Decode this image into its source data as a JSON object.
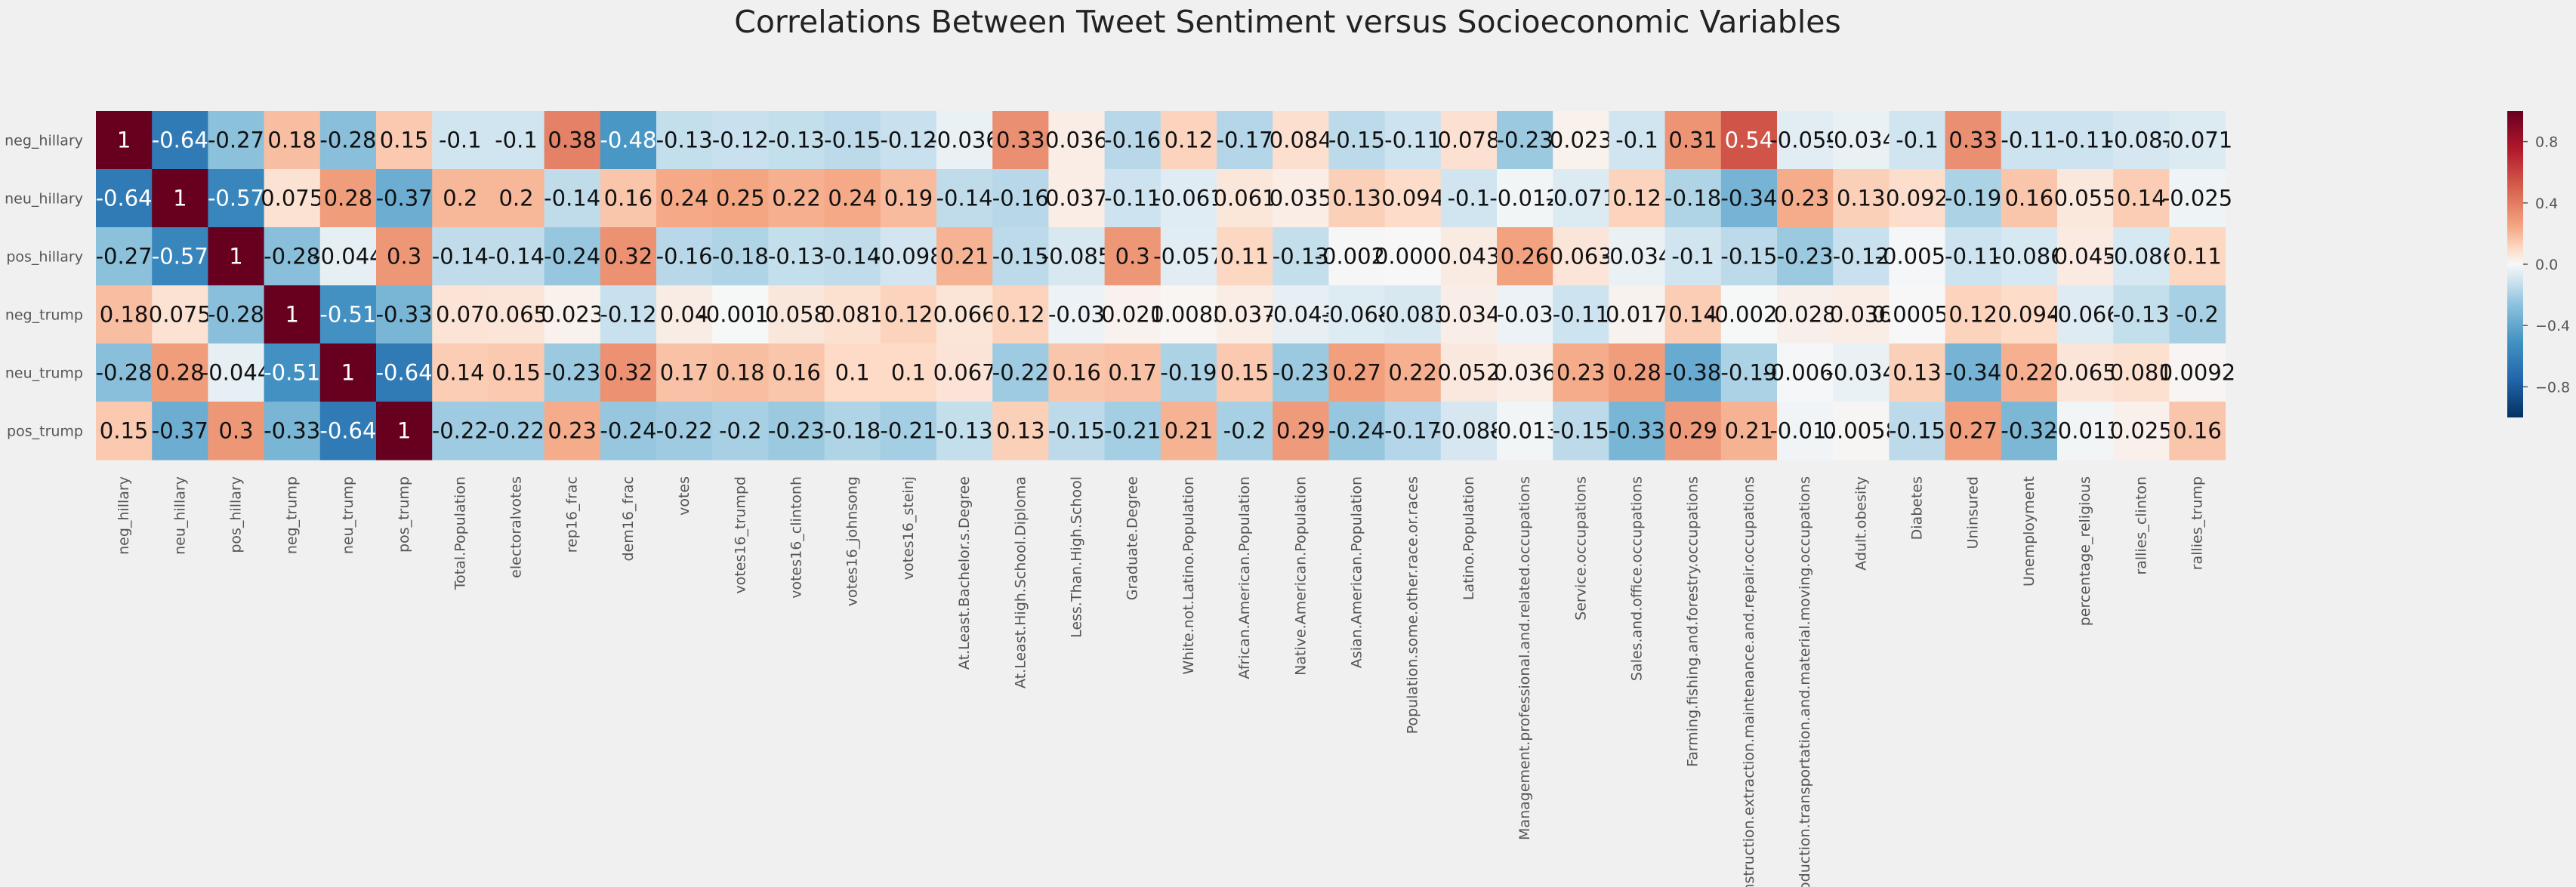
{
  "chart_data": {
    "type": "heatmap",
    "title": "Correlations Between Tweet Sentiment versus Socioeconomic Variables",
    "rows": [
      "neg_hillary",
      "neu_hillary",
      "pos_hillary",
      "neg_trump",
      "neu_trump",
      "pos_trump"
    ],
    "columns": [
      "neg_hillary",
      "neu_hillary",
      "pos_hillary",
      "neg_trump",
      "neu_trump",
      "pos_trump",
      "Total.Population",
      "electoralvotes",
      "rep16_frac",
      "dem16_frac",
      "votes",
      "votes16_trumpd",
      "votes16_clintonh",
      "votes16_johnsong",
      "votes16_steinj",
      "At.Least.Bachelor.s.Degree",
      "At.Least.High.School.Diploma",
      "Less.Than.High.School",
      "Graduate.Degree",
      "White.not.Latino.Population",
      "African.American.Population",
      "Native.American.Population",
      "Asian.American.Population",
      "Population.some.other.race.or.races",
      "Latino.Population",
      "Management.professional.and.related.occupations",
      "Service.occupations",
      "Sales.and.office.occupations",
      "Farming.fishing.and.forestry.occupations",
      "Construction.extraction.maintenance.and.repair.occupations",
      "Production.transportation.and.material.moving.occupations",
      "Adult.obesity",
      "Diabetes",
      "Uninsured",
      "Unemployment",
      "percentage_religious",
      "rallies_clinton",
      "rallies_trump"
    ],
    "values": [
      [
        1,
        -0.64,
        -0.27,
        0.18,
        -0.28,
        0.15,
        -0.1,
        -0.1,
        0.38,
        -0.48,
        -0.13,
        -0.12,
        -0.13,
        -0.15,
        -0.12,
        -0.036,
        0.33,
        0.036,
        -0.16,
        0.12,
        -0.17,
        0.084,
        -0.15,
        -0.11,
        0.078,
        -0.23,
        0.023,
        -0.1,
        0.31,
        0.54,
        -0.059,
        -0.034,
        -0.1,
        0.33,
        -0.11,
        -0.11,
        -0.087,
        -0.071
      ],
      [
        -0.64,
        1,
        -0.57,
        0.075,
        0.28,
        -0.37,
        0.2,
        0.2,
        -0.14,
        0.16,
        0.24,
        0.25,
        0.22,
        0.24,
        0.19,
        -0.14,
        -0.16,
        0.037,
        -0.11,
        -0.061,
        0.061,
        0.035,
        0.13,
        0.094,
        -0.1,
        -0.012,
        -0.071,
        0.12,
        -0.18,
        -0.34,
        0.23,
        0.13,
        0.092,
        -0.19,
        0.16,
        0.055,
        0.14,
        -0.025
      ],
      [
        -0.27,
        -0.57,
        1,
        -0.28,
        -0.044,
        0.3,
        -0.14,
        -0.14,
        -0.24,
        0.32,
        -0.16,
        -0.18,
        -0.13,
        -0.14,
        -0.098,
        0.21,
        -0.15,
        -0.085,
        0.3,
        -0.057,
        0.11,
        -0.13,
        -0.0028,
        0.0006,
        0.043,
        0.26,
        0.063,
        -0.034,
        -0.1,
        -0.15,
        -0.23,
        -0.12,
        -0.0059,
        -0.11,
        -0.086,
        0.045,
        -0.086,
        0.11
      ],
      [
        0.18,
        0.075,
        -0.28,
        1,
        -0.51,
        -0.33,
        0.07,
        0.065,
        0.023,
        -0.12,
        0.04,
        -0.0019,
        0.058,
        0.081,
        0.12,
        0.066,
        0.12,
        -0.03,
        0.021,
        0.0085,
        0.037,
        -0.043,
        -0.068,
        -0.083,
        0.034,
        -0.03,
        -0.11,
        0.017,
        0.14,
        -0.0023,
        0.028,
        0.036,
        0.00053,
        0.12,
        0.094,
        -0.066,
        -0.13,
        -0.2
      ],
      [
        -0.28,
        0.28,
        -0.044,
        -0.51,
        1,
        -0.64,
        0.14,
        0.15,
        -0.23,
        0.32,
        0.17,
        0.18,
        0.16,
        0.1,
        0.1,
        0.067,
        -0.22,
        0.16,
        0.17,
        -0.19,
        0.15,
        -0.23,
        0.27,
        0.22,
        0.052,
        0.036,
        0.23,
        0.28,
        -0.38,
        -0.19,
        -0.0068,
        -0.034,
        0.13,
        -0.34,
        0.22,
        0.065,
        0.081,
        0.0092
      ],
      [
        0.15,
        -0.37,
        0.3,
        -0.33,
        -0.64,
        1,
        -0.22,
        -0.22,
        0.23,
        -0.24,
        -0.22,
        -0.2,
        -0.23,
        -0.18,
        -0.21,
        -0.13,
        0.13,
        -0.15,
        -0.21,
        0.21,
        -0.2,
        0.29,
        -0.24,
        -0.17,
        -0.088,
        -0.013,
        -0.15,
        -0.33,
        0.29,
        0.21,
        -0.017,
        0.0058,
        -0.15,
        0.27,
        -0.32,
        -0.013,
        0.025,
        0.16
      ]
    ],
    "labels": [
      [
        "1",
        "-0.64",
        "-0.27",
        "0.18",
        "-0.28",
        "0.15",
        "-0.1",
        "-0.1",
        "0.38",
        "-0.48",
        "-0.13",
        "-0.12",
        "-0.13",
        "-0.15",
        "-0.12",
        "-0.036",
        "0.33",
        "0.036",
        "-0.16",
        "0.12",
        "-0.17",
        "0.084",
        "-0.15",
        "-0.11",
        "0.078",
        "-0.23",
        "0.023",
        "-0.1",
        "0.31",
        "0.54",
        "-0.059",
        "-0.034",
        "-0.1",
        "0.33",
        "-0.11",
        "-0.11",
        "-0.087",
        "-0.071"
      ],
      [
        "-0.64",
        "1",
        "-0.57",
        "0.075",
        "0.28",
        "-0.37",
        "0.2",
        "0.2",
        "-0.14",
        "0.16",
        "0.24",
        "0.25",
        "0.22",
        "0.24",
        "0.19",
        "-0.14",
        "-0.16",
        "0.037",
        "-0.11",
        "-0.061",
        "0.061",
        "0.035",
        "0.13",
        "0.094",
        "-0.1",
        "-0.012",
        "-0.071",
        "0.12",
        "-0.18",
        "-0.34",
        "0.23",
        "0.13",
        "0.092",
        "-0.19",
        "0.16",
        "0.055",
        "0.14",
        "-0.025"
      ],
      [
        "-0.27",
        "-0.57",
        "1",
        "-0.28",
        "-0.044",
        "0.3",
        "-0.14",
        "-0.14",
        "-0.24",
        "0.32",
        "-0.16",
        "-0.18",
        "-0.13",
        "-0.14",
        "-0.098",
        "0.21",
        "-0.15",
        "-0.085",
        "0.3",
        "-0.057",
        "0.11",
        "-0.13",
        "-0.0028",
        "0.0006",
        "0.043",
        "0.26",
        "0.063",
        "-0.034",
        "-0.1",
        "-0.15",
        "-0.23",
        "-0.12",
        "-0.0059",
        "-0.11",
        "-0.086",
        "0.045",
        "-0.086",
        "0.11"
      ],
      [
        "0.18",
        "0.075",
        "-0.28",
        "1",
        "-0.51",
        "-0.33",
        "0.07",
        "0.065",
        "0.023",
        "-0.12",
        "0.04",
        "-0.0019",
        "0.058",
        "0.081",
        "0.12",
        "0.066",
        "0.12",
        "-0.03",
        "0.021",
        "0.0085",
        "0.037",
        "-0.043",
        "-0.068",
        "-0.083",
        "0.034",
        "-0.03",
        "-0.11",
        "0.017",
        "0.14",
        "-0.0023",
        "0.028",
        "0.036",
        "0.00053",
        "0.12",
        "0.094",
        "-0.066",
        "-0.13",
        "-0.2"
      ],
      [
        "-0.28",
        "0.28",
        "-0.044",
        "-0.51",
        "1",
        "-0.64",
        "0.14",
        "0.15",
        "-0.23",
        "0.32",
        "0.17",
        "0.18",
        "0.16",
        "0.1",
        "0.1",
        "0.067",
        "-0.22",
        "0.16",
        "0.17",
        "-0.19",
        "0.15",
        "-0.23",
        "0.27",
        "0.22",
        "0.052",
        "0.036",
        "0.23",
        "0.28",
        "-0.38",
        "-0.19",
        "-0.0068",
        "-0.034",
        "0.13",
        "-0.34",
        "0.22",
        "0.065",
        "0.081",
        "0.0092"
      ],
      [
        "0.15",
        "-0.37",
        "0.3",
        "-0.33",
        "-0.64",
        "1",
        "-0.22",
        "-0.22",
        "0.23",
        "-0.24",
        "-0.22",
        "-0.2",
        "-0.23",
        "-0.18",
        "-0.21",
        "-0.13",
        "0.13",
        "-0.15",
        "-0.21",
        "0.21",
        "-0.2",
        "0.29",
        "-0.24",
        "-0.17",
        "-0.088",
        "-0.013",
        "-0.15",
        "-0.33",
        "0.29",
        "0.21",
        "-0.017",
        "0.0058",
        "-0.15",
        "0.27",
        "-0.32",
        "-0.013",
        "0.025",
        "0.16"
      ]
    ],
    "colorbar": {
      "range": [
        -1,
        1
      ],
      "ticks": [
        "0.8",
        "0.4",
        "0.0",
        "−0.4",
        "−0.8"
      ],
      "tick_values": [
        0.8,
        0.4,
        0,
        -0.4,
        -0.8
      ],
      "colormap": "RdBu_r"
    },
    "grid": false
  }
}
